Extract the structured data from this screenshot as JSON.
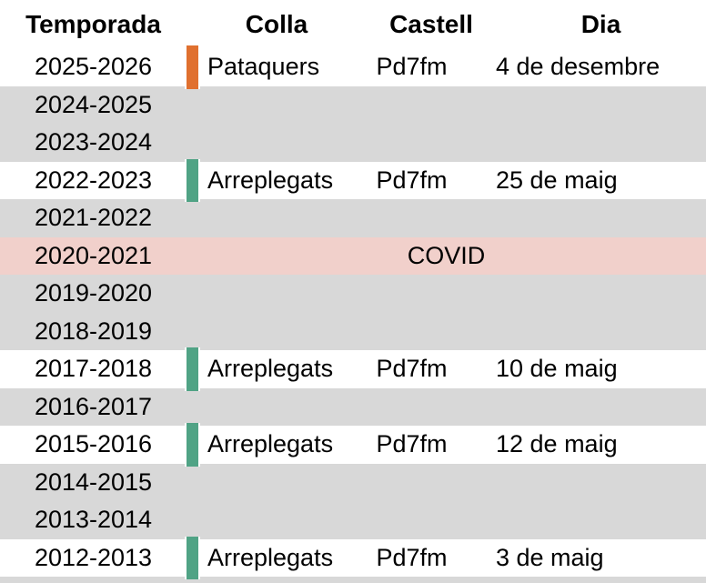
{
  "table": {
    "columns": [
      "Temporada",
      "Colla",
      "Castell",
      "Dia"
    ],
    "rows": [
      {
        "temporada": "2025-2026",
        "type": "filled",
        "bar_color": "#e0702f",
        "colla": "Pataquers",
        "castell": "Pd7fm",
        "dia": "4 de desembre"
      },
      {
        "temporada": "2024-2025",
        "type": "empty"
      },
      {
        "temporada": "2023-2024",
        "type": "empty"
      },
      {
        "temporada": "2022-2023",
        "type": "filled",
        "bar_color": "#50a385",
        "colla": "Arreplegats",
        "castell": "Pd7fm",
        "dia": "25 de maig"
      },
      {
        "temporada": "2021-2022",
        "type": "empty"
      },
      {
        "temporada": "2020-2021",
        "type": "covid",
        "note": "COVID"
      },
      {
        "temporada": "2019-2020",
        "type": "empty"
      },
      {
        "temporada": "2018-2019",
        "type": "empty"
      },
      {
        "temporada": "2017-2018",
        "type": "filled",
        "bar_color": "#50a385",
        "colla": "Arreplegats",
        "castell": "Pd7fm",
        "dia": "10 de maig"
      },
      {
        "temporada": "2016-2017",
        "type": "empty"
      },
      {
        "temporada": "2015-2016",
        "type": "filled",
        "bar_color": "#50a385",
        "colla": "Arreplegats",
        "castell": "Pd7fm",
        "dia": "12 de maig"
      },
      {
        "temporada": "2014-2015",
        "type": "empty"
      },
      {
        "temporada": "2013-2014",
        "type": "empty"
      },
      {
        "temporada": "2012-2013",
        "type": "filled",
        "bar_color": "#50a385",
        "colla": "Arreplegats",
        "castell": "Pd7fm",
        "dia": "3 de maig"
      }
    ],
    "colors": {
      "row_empty_bg": "#d8d8d8",
      "row_filled_bg": "#ffffff",
      "covid_bg": "#f1d0cb",
      "bar_orange": "#e0702f",
      "bar_green": "#50a385",
      "text": "#000000"
    }
  }
}
